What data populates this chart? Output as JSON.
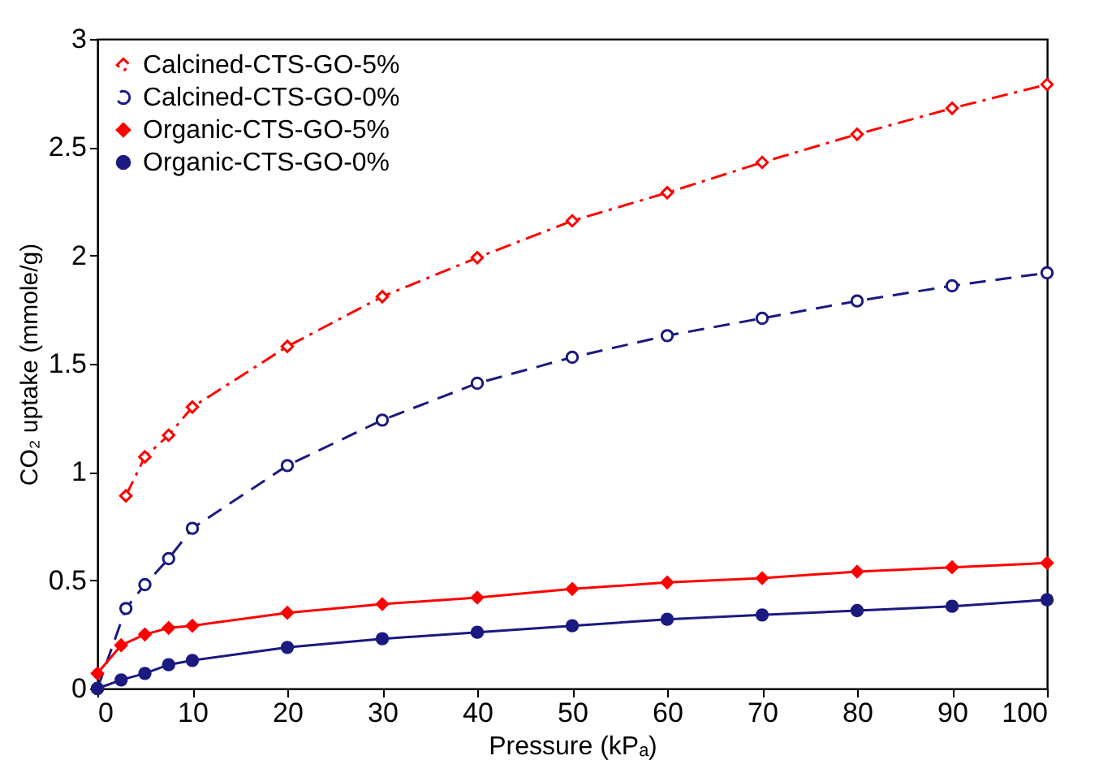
{
  "chart_data": {
    "type": "line",
    "xlabel": "Pressure (kPₐ)",
    "ylabel": "CO₂ uptake (mmole/g)",
    "xlim": [
      0,
      100
    ],
    "ylim": [
      0,
      3
    ],
    "xticks": [
      0,
      10,
      20,
      30,
      40,
      50,
      60,
      70,
      80,
      90,
      100
    ],
    "yticks": [
      0,
      0.5,
      1,
      1.5,
      2,
      2.5,
      3
    ],
    "legend": "top left",
    "grid": false,
    "series": [
      {
        "name": "Calcined-CTS-GO-5%",
        "color": "#ff0000",
        "marker": "diamond",
        "line_style": "dashdot",
        "x": [
          3,
          5,
          7.5,
          10,
          20,
          30,
          40,
          50,
          60,
          70,
          80,
          90,
          100
        ],
        "values": [
          0.89,
          1.07,
          1.17,
          1.3,
          1.58,
          1.81,
          1.99,
          2.16,
          2.29,
          2.43,
          2.56,
          2.68,
          2.79
        ]
      },
      {
        "name": "Calcined-CTS-GO-0%",
        "color": "#1a1a80",
        "marker": "circle",
        "line_style": "dashed",
        "x": [
          0,
          3,
          5,
          7.5,
          10,
          20,
          30,
          40,
          50,
          60,
          70,
          80,
          90,
          100
        ],
        "values": [
          0,
          0.37,
          0.48,
          0.6,
          0.74,
          1.03,
          1.24,
          1.41,
          1.53,
          1.63,
          1.71,
          1.79,
          1.86,
          1.92
        ]
      },
      {
        "name": "Organic-CTS-GO-5%",
        "color": "#ff0000",
        "marker": "diamond",
        "line_style": "solid",
        "x": [
          0,
          2.5,
          5,
          7.5,
          10,
          20,
          30,
          40,
          50,
          60,
          70,
          80,
          90,
          100
        ],
        "values": [
          0.07,
          0.2,
          0.25,
          0.28,
          0.29,
          0.35,
          0.39,
          0.42,
          0.46,
          0.49,
          0.51,
          0.54,
          0.56,
          0.58
        ]
      },
      {
        "name": "Organic-CTS-GO-0%",
        "color": "#1a1a80",
        "marker": "circle",
        "line_style": "solid",
        "x": [
          0,
          2.5,
          5,
          7.5,
          10,
          20,
          30,
          40,
          50,
          60,
          70,
          80,
          90,
          100
        ],
        "values": [
          0,
          0.04,
          0.07,
          0.11,
          0.13,
          0.19,
          0.23,
          0.26,
          0.29,
          0.32,
          0.34,
          0.36,
          0.38,
          0.41
        ]
      }
    ]
  }
}
